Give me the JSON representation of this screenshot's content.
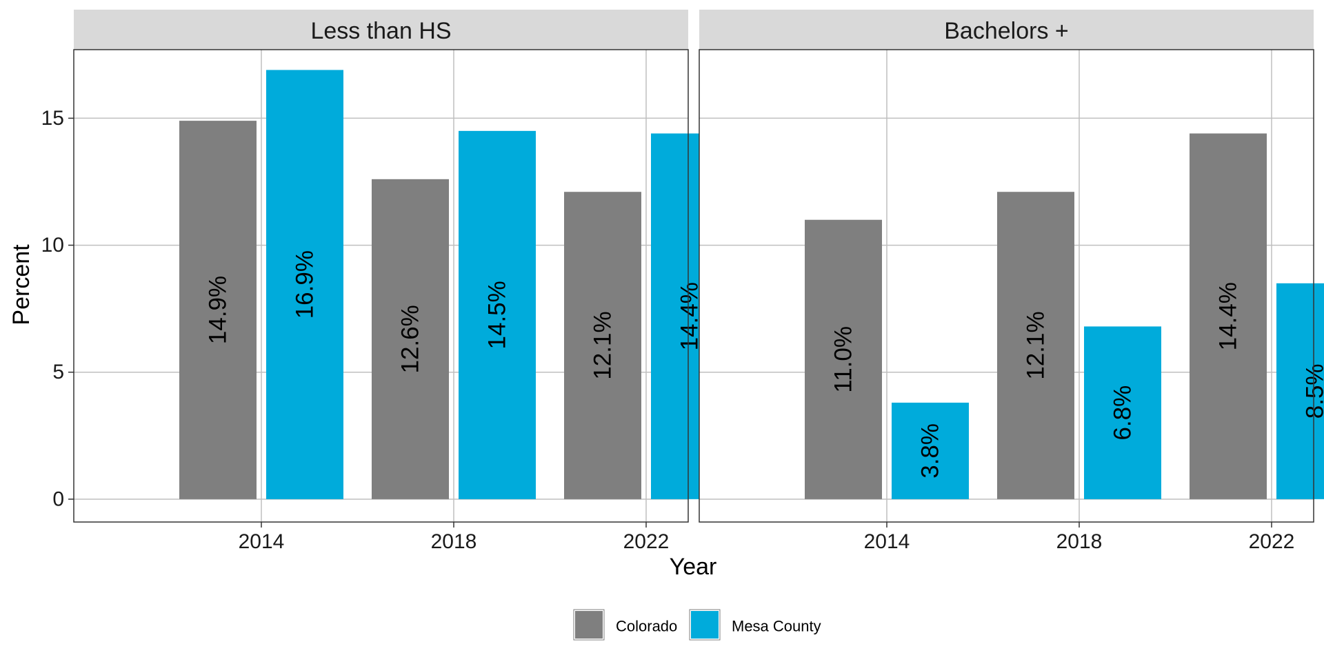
{
  "chart_data": {
    "type": "bar",
    "layout": "facet-wrap",
    "xlabel": "Year",
    "ylabel": "Percent",
    "categories": [
      "2014",
      "2018",
      "2022"
    ],
    "ylim": [
      -0.9,
      17.7
    ],
    "yticks": [
      0,
      5,
      10,
      15
    ],
    "ytick_labels": [
      "0",
      "5",
      "10",
      "15"
    ],
    "grid": true,
    "legend_position": "bottom",
    "legend": [
      {
        "name": "Colorado",
        "color": "#7f7f7f"
      },
      {
        "name": "Mesa County",
        "color": "#00abdb"
      }
    ],
    "panels": [
      {
        "title": "Less than HS",
        "series": [
          {
            "name": "Colorado",
            "values": [
              14.9,
              12.6,
              12.1
            ],
            "labels": [
              "14.9%",
              "12.6%",
              "12.1%"
            ]
          },
          {
            "name": "Mesa County",
            "values": [
              16.9,
              14.5,
              14.4
            ],
            "labels": [
              "16.9%",
              "14.5%",
              "14.4%"
            ]
          }
        ]
      },
      {
        "title": "Bachelors +",
        "series": [
          {
            "name": "Colorado",
            "values": [
              11.0,
              12.1,
              14.4
            ],
            "labels": [
              "11.0%",
              "12.1%",
              "14.4%"
            ]
          },
          {
            "name": "Mesa County",
            "values": [
              3.8,
              6.8,
              8.5
            ],
            "labels": [
              "3.8%",
              "6.8%",
              "8.5%"
            ]
          }
        ]
      }
    ]
  }
}
